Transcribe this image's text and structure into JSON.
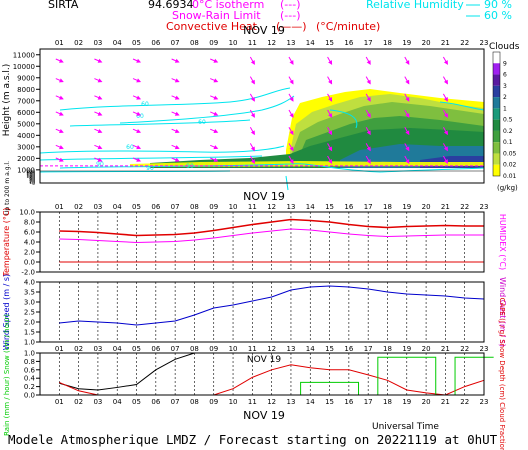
{
  "header": {
    "station": "SIRTA",
    "code": "94.6934",
    "isotherm_label": "0°C isotherm",
    "isotherm_symbol": "(---)",
    "snow_rain_label": "Snow-Rain Limit",
    "snow_rain_symbol": "(---)",
    "convective_label": "Convective Heat.",
    "convective_unit": "(°C/minute)",
    "rh_label": "Relative Humidity",
    "rh_90": "90 %",
    "rh_60": "60 %"
  },
  "footer": {
    "universal_time": "Universal Time",
    "forecast_title": "Modele Atmospherique LMDZ / Forecast starting on 20221119 at 0hUT"
  },
  "colors": {
    "isotherm": "#ff00ff",
    "wind_arrows": "#ff00ff",
    "rh_contour": "#00e5ee",
    "temperature": "#e00000",
    "humidex": "#ff00ff",
    "wind_speed": "#0000cc",
    "wind_gust": "#cc00cc",
    "rain": "#00cc00",
    "snow_depth": "#000000",
    "cloud_fraction": "#1060c0",
    "cape": "#e00000"
  },
  "chart_data": [
    {
      "panel": "clouds",
      "type": "heatmap",
      "date_label": "NOV 19",
      "hours": [
        "01",
        "02",
        "03",
        "04",
        "05",
        "06",
        "07",
        "08",
        "09",
        "10",
        "11",
        "12",
        "13",
        "14",
        "15",
        "16",
        "17",
        "18",
        "19",
        "20",
        "21",
        "22",
        "23"
      ],
      "ylabel": "Height (m a.s.l.)",
      "ylabel_low": "Up to 200 m a.g.l.",
      "yticks_upper": [
        "1000",
        "2000",
        "3000",
        "4000",
        "5000",
        "6000",
        "7000",
        "8000",
        "9000",
        "10000",
        "11000"
      ],
      "yticks_lower": [
        "0",
        "10",
        "20",
        "40",
        "50",
        "60",
        "80",
        "100",
        "120",
        "140",
        "160",
        "180",
        "200"
      ],
      "legend_title": "Clouds",
      "legend_unit": "(g/kg)",
      "legend_levels": [
        "9",
        "6",
        "3",
        "2",
        "1",
        "0.5",
        "0.2",
        "0.1",
        "0.05",
        "0.02",
        "0.01"
      ],
      "legend_colors": [
        "#ffffff",
        "#a020f0",
        "#5a1aa0",
        "#2a3fa0",
        "#1f7a9a",
        "#1a9a7a",
        "#208a40",
        "#3f9f3f",
        "#7fbf3f",
        "#bfdf3f",
        "#ffff00"
      ],
      "rh_contour_labels": [
        "60",
        "60",
        "60",
        "60",
        "90",
        "90",
        "90"
      ],
      "isotherm_height_m": 1350
    },
    {
      "panel": "temperature",
      "type": "line",
      "ylabel": "Temperature (°C)",
      "ylabel_right": "HUMIDEX (°C)",
      "yticks": [
        "-2.0",
        "0.0",
        "2.0",
        "4.0",
        "6.0",
        "8.0",
        "10.0"
      ],
      "ylim": [
        -2,
        10
      ],
      "x": [
        1,
        2,
        3,
        4,
        5,
        6,
        7,
        8,
        9,
        10,
        11,
        12,
        13,
        14,
        15,
        16,
        17,
        18,
        19,
        20,
        21,
        22,
        23
      ],
      "series": [
        {
          "name": "Temperature",
          "values": [
            6.2,
            6.1,
            5.9,
            5.6,
            5.3,
            5.4,
            5.5,
            5.8,
            6.3,
            6.9,
            7.5,
            8.0,
            8.5,
            8.3,
            8.0,
            7.5,
            7.1,
            6.9,
            7.1,
            7.2,
            7.3,
            7.2,
            7.2
          ]
        },
        {
          "name": "HUMIDEX",
          "values": [
            4.6,
            4.5,
            4.3,
            4.1,
            3.9,
            4.0,
            4.1,
            4.4,
            4.8,
            5.3,
            5.8,
            6.2,
            6.6,
            6.4,
            6.0,
            5.6,
            5.3,
            5.1,
            5.2,
            5.3,
            5.4,
            5.4,
            5.4
          ]
        },
        {
          "name": "zero",
          "values": [
            0,
            0,
            0,
            0,
            0,
            0,
            0,
            0,
            0,
            0,
            0,
            0,
            0,
            0,
            0,
            0,
            0,
            0,
            0,
            0,
            0,
            0,
            0
          ]
        }
      ]
    },
    {
      "panel": "wind",
      "type": "line",
      "ylabel": "Wind Speed (m / s)",
      "ylabel_right": "Wind Gust (m / s)",
      "yticks": [
        "1.0",
        "1.5",
        "2.0",
        "2.5",
        "3.0",
        "3.5",
        "4.0"
      ],
      "ylim": [
        1.0,
        4.0
      ],
      "x": [
        1,
        2,
        3,
        4,
        5,
        6,
        7,
        8,
        9,
        10,
        11,
        12,
        13,
        14,
        15,
        16,
        17,
        18,
        19,
        20,
        21,
        22,
        23
      ],
      "series": [
        {
          "name": "Wind Speed",
          "values": [
            1.95,
            2.05,
            2.0,
            1.95,
            1.85,
            1.95,
            2.05,
            2.35,
            2.7,
            2.85,
            3.05,
            3.25,
            3.6,
            3.75,
            3.8,
            3.75,
            3.65,
            3.5,
            3.4,
            3.35,
            3.3,
            3.2,
            3.15
          ]
        }
      ]
    },
    {
      "panel": "precip",
      "type": "line",
      "date_label": "NOV 19",
      "ylabel": "Rain (mm / hour) Snow (cm / hour)",
      "ylabel_right": "CAPE (J / g) Snow Depth (cm) Cloud Fraction",
      "yticks": [
        "0.0",
        "0.2",
        "0.4",
        "0.6",
        "0.8",
        "1.0"
      ],
      "ylim": [
        0,
        1
      ],
      "x": [
        1,
        2,
        3,
        4,
        5,
        6,
        7,
        8,
        9,
        10,
        11,
        12,
        13,
        14,
        15,
        16,
        17,
        18,
        19,
        20,
        21,
        22,
        23
      ],
      "series": [
        {
          "name": "Cloud Fraction",
          "values": [
            0.28,
            0.15,
            0.12,
            0.18,
            0.25,
            0.6,
            0.85,
            1.0,
            1.0,
            1.0,
            1.0,
            1.0,
            1.0,
            1.0,
            1.0,
            1.0,
            1.0,
            1.0,
            1.0,
            1.0,
            1.0,
            1.0,
            1.0
          ]
        },
        {
          "name": "CAPE",
          "values": [
            0.3,
            0.1,
            0.0,
            0.0,
            0.0,
            0.0,
            0.0,
            0.0,
            0.0,
            0.15,
            0.42,
            0.6,
            0.72,
            0.65,
            0.6,
            0.6,
            0.48,
            0.35,
            0.12,
            0.05,
            0.0,
            0.2,
            0.35
          ]
        },
        {
          "name": "Rain",
          "values": [
            0,
            0,
            0,
            0,
            0,
            0,
            0,
            0,
            0,
            0,
            0,
            0,
            0,
            0.3,
            0.3,
            0.3,
            0,
            0.9,
            0.9,
            0.9,
            0,
            0.9,
            0.9
          ]
        }
      ]
    }
  ]
}
